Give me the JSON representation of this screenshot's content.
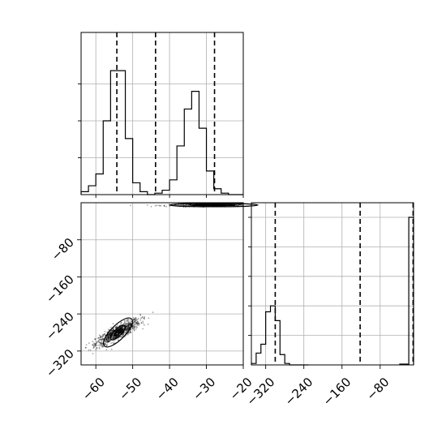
{
  "chart_data": [
    {
      "type": "histogram",
      "panel": "top-left marginal",
      "xlim": [
        -64,
        -20
      ],
      "bins": [
        -64,
        -62,
        -60,
        -58,
        -56,
        -54,
        -52,
        -50,
        -48,
        -46,
        -44,
        -42,
        -40,
        -38,
        -36,
        -34,
        -32,
        -30,
        -28,
        -26,
        -24,
        -22,
        -20
      ],
      "counts": [
        0.02,
        0.06,
        0.14,
        0.5,
        0.84,
        0.84,
        0.38,
        0.08,
        0.02,
        0,
        0.01,
        0.03,
        0.1,
        0.33,
        0.58,
        0.7,
        0.45,
        0.16,
        0.04,
        0.01,
        0,
        0
      ],
      "quantiles": [
        -54.3,
        -43.8,
        -27.8
      ],
      "x_tick_labels": [],
      "y_tick_labels": [],
      "grid": true
    },
    {
      "type": "scatter",
      "panel": "bottom-left joint",
      "xlim": [
        -64,
        -20
      ],
      "ylim": [
        -350,
        0
      ],
      "x_ticks": [
        -60,
        -50,
        -40,
        -30,
        -20
      ],
      "y_ticks": [
        -80,
        -160,
        -240,
        -320
      ],
      "x_tick_labels": [
        "−60",
        "−50",
        "−40",
        "−30",
        "−20"
      ],
      "y_tick_labels": [
        "−80",
        "−160",
        "−240",
        "−320"
      ],
      "clusters": [
        {
          "center_x": -54,
          "center_y": -280,
          "spread_x": 3.0,
          "spread_y": 14,
          "correlation": 0.85
        },
        {
          "center_x": -28,
          "center_y": -5,
          "spread_x": 6.0,
          "spread_y": 1.5,
          "correlation": 0.2
        }
      ],
      "grid": true
    },
    {
      "type": "histogram",
      "panel": "bottom-right marginal",
      "xlim": [
        -350,
        -10
      ],
      "bins": [
        -350,
        -340,
        -330,
        -320,
        -310,
        -300,
        -290,
        -280,
        -270,
        -260,
        -250,
        -240,
        -230
      ],
      "counts": [
        0.01,
        0.08,
        0.14,
        0.36,
        0.4,
        0.3,
        0.07,
        0.01,
        0,
        0,
        0,
        0
      ],
      "spike": {
        "bins": [
          -20,
          -10
        ],
        "count": 1.0
      },
      "quantiles": [
        -300,
        -122,
        -11
      ],
      "x_ticks": [
        -320,
        -240,
        -160,
        -80
      ],
      "x_tick_labels": [
        "−320",
        "−240",
        "−160",
        "−80"
      ],
      "y_tick_labels": [],
      "grid": true
    }
  ]
}
